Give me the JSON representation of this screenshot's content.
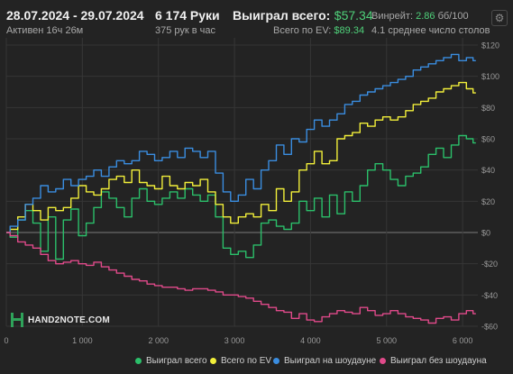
{
  "header": {
    "date_range": "28.07.2024 - 29.07.2024",
    "active_time": "Активен 16ч 26м",
    "hands": "6 174 Руки",
    "hands_per_hour": "375 рук в час",
    "won_total_label": "Выиграл всего:",
    "won_total_value": "$57.34",
    "ev_label": "Всего по EV:",
    "ev_value": "$89.34",
    "winrate_label": "Винрейт:",
    "winrate_value": "2.86",
    "winrate_unit": "бб/100",
    "tables_text": "4.1 среднее число столов"
  },
  "logo": {
    "text": "HAND2NOTE.COM"
  },
  "icons": {
    "settings": "gear-icon"
  },
  "colors": {
    "background": "#232323",
    "grid": "#363636",
    "won_total": "#2bbf6a",
    "ev": "#f2ef3a",
    "showdown": "#3a8de0",
    "no_showdown": "#e04a8a"
  },
  "chart_data": {
    "type": "line",
    "xlabel": "",
    "ylabel": "",
    "xlim": [
      0,
      6200
    ],
    "ylim": [
      -60,
      120
    ],
    "x_ticks": [
      0,
      1000,
      2000,
      3000,
      4000,
      5000,
      6000
    ],
    "x_tick_labels": [
      "0",
      "1 000",
      "2 000",
      "3 000",
      "4 000",
      "5 000",
      "6 000"
    ],
    "y_ticks": [
      -60,
      -40,
      -20,
      0,
      20,
      40,
      60,
      80,
      100,
      120
    ],
    "y_tick_labels": [
      "-$60",
      "-$40",
      "-$20",
      "$0",
      "$20",
      "$40",
      "$60",
      "$80",
      "$100",
      "$120"
    ],
    "grid": true,
    "legend_position": "bottom",
    "series": [
      {
        "name": "Выиграл всего",
        "color": "#2bbf6a",
        "x": [
          0,
          100,
          200,
          300,
          400,
          500,
          600,
          700,
          800,
          900,
          1000,
          1100,
          1200,
          1300,
          1400,
          1500,
          1600,
          1700,
          1800,
          1900,
          2000,
          2100,
          2200,
          2300,
          2400,
          2500,
          2600,
          2700,
          2800,
          2900,
          3000,
          3100,
          3200,
          3300,
          3400,
          3500,
          3600,
          3700,
          3800,
          3900,
          4000,
          4100,
          4200,
          4300,
          4400,
          4500,
          4600,
          4700,
          4800,
          4900,
          5000,
          5100,
          5200,
          5300,
          5400,
          5500,
          5600,
          5700,
          5800,
          5900,
          6000,
          6100,
          6174
        ],
        "values": [
          0,
          -3,
          8,
          14,
          6,
          -12,
          10,
          -17,
          8,
          15,
          -2,
          6,
          16,
          26,
          22,
          16,
          10,
          22,
          28,
          20,
          18,
          22,
          26,
          22,
          28,
          24,
          20,
          24,
          10,
          -10,
          -14,
          -12,
          -16,
          -8,
          6,
          8,
          4,
          2,
          6,
          20,
          14,
          22,
          10,
          24,
          12,
          26,
          20,
          30,
          40,
          44,
          40,
          34,
          30,
          36,
          38,
          42,
          50,
          54,
          48,
          56,
          62,
          60,
          57.34
        ]
      },
      {
        "name": "Всего по EV",
        "color": "#f2ef3a",
        "x": [
          0,
          100,
          200,
          300,
          400,
          500,
          600,
          700,
          800,
          900,
          1000,
          1100,
          1200,
          1300,
          1400,
          1500,
          1600,
          1700,
          1800,
          1900,
          2000,
          2100,
          2200,
          2300,
          2400,
          2500,
          2600,
          2700,
          2800,
          2900,
          3000,
          3100,
          3200,
          3300,
          3400,
          3500,
          3600,
          3700,
          3800,
          3900,
          4000,
          4100,
          4200,
          4300,
          4400,
          4500,
          4600,
          4700,
          4800,
          4900,
          5000,
          5100,
          5200,
          5300,
          5400,
          5500,
          5600,
          5700,
          5800,
          5900,
          6000,
          6100,
          6174
        ],
        "values": [
          0,
          2,
          10,
          18,
          14,
          8,
          16,
          14,
          16,
          22,
          30,
          26,
          24,
          28,
          34,
          36,
          32,
          40,
          32,
          30,
          28,
          36,
          30,
          28,
          32,
          30,
          34,
          26,
          18,
          10,
          6,
          10,
          12,
          10,
          18,
          14,
          28,
          20,
          26,
          40,
          44,
          52,
          44,
          46,
          60,
          62,
          64,
          70,
          68,
          72,
          74,
          72,
          74,
          78,
          82,
          84,
          86,
          90,
          92,
          94,
          96,
          92,
          89.34
        ]
      },
      {
        "name": "Выиграл на шоудауне",
        "color": "#3a8de0",
        "x": [
          0,
          100,
          200,
          300,
          400,
          500,
          600,
          700,
          800,
          900,
          1000,
          1100,
          1200,
          1300,
          1400,
          1500,
          1600,
          1700,
          1800,
          1900,
          2000,
          2100,
          2200,
          2300,
          2400,
          2500,
          2600,
          2700,
          2800,
          2900,
          3000,
          3100,
          3200,
          3300,
          3400,
          3500,
          3600,
          3700,
          3800,
          3900,
          4000,
          4100,
          4200,
          4300,
          4400,
          4500,
          4600,
          4700,
          4800,
          4900,
          5000,
          5100,
          5200,
          5300,
          5400,
          5500,
          5600,
          5700,
          5800,
          5900,
          6000,
          6100,
          6174
        ],
        "values": [
          0,
          4,
          8,
          18,
          22,
          30,
          26,
          28,
          34,
          30,
          34,
          36,
          40,
          36,
          42,
          46,
          44,
          46,
          52,
          50,
          46,
          48,
          52,
          48,
          54,
          52,
          48,
          52,
          38,
          26,
          20,
          24,
          34,
          28,
          40,
          46,
          56,
          50,
          60,
          58,
          66,
          72,
          68,
          72,
          76,
          82,
          84,
          88,
          90,
          92,
          94,
          96,
          98,
          100,
          104,
          106,
          108,
          110,
          112,
          114,
          110,
          112,
          110
        ]
      },
      {
        "name": "Выиграл без шоудауна",
        "color": "#e04a8a",
        "x": [
          0,
          100,
          200,
          300,
          400,
          500,
          600,
          700,
          800,
          900,
          1000,
          1100,
          1200,
          1300,
          1400,
          1500,
          1600,
          1700,
          1800,
          1900,
          2000,
          2100,
          2200,
          2300,
          2400,
          2500,
          2600,
          2700,
          2800,
          2900,
          3000,
          3100,
          3200,
          3300,
          3400,
          3500,
          3600,
          3700,
          3800,
          3900,
          4000,
          4100,
          4200,
          4300,
          4400,
          4500,
          4600,
          4700,
          4800,
          4900,
          5000,
          5100,
          5200,
          5300,
          5400,
          5500,
          5600,
          5700,
          5800,
          5900,
          6000,
          6100,
          6174
        ],
        "values": [
          0,
          -2,
          -6,
          -8,
          -10,
          -14,
          -18,
          -20,
          -19,
          -18,
          -20,
          -21,
          -19,
          -22,
          -24,
          -26,
          -28,
          -30,
          -31,
          -33,
          -34,
          -35,
          -35,
          -36,
          -37,
          -36,
          -36,
          -37,
          -38,
          -40,
          -40,
          -41,
          -42,
          -44,
          -46,
          -48,
          -50,
          -51,
          -55,
          -52,
          -56,
          -57,
          -54,
          -52,
          -50,
          -51,
          -52,
          -48,
          -50,
          -53,
          -52,
          -50,
          -52,
          -54,
          -55,
          -56,
          -58,
          -55,
          -54,
          -56,
          -52,
          -50,
          -52
        ]
      }
    ]
  }
}
